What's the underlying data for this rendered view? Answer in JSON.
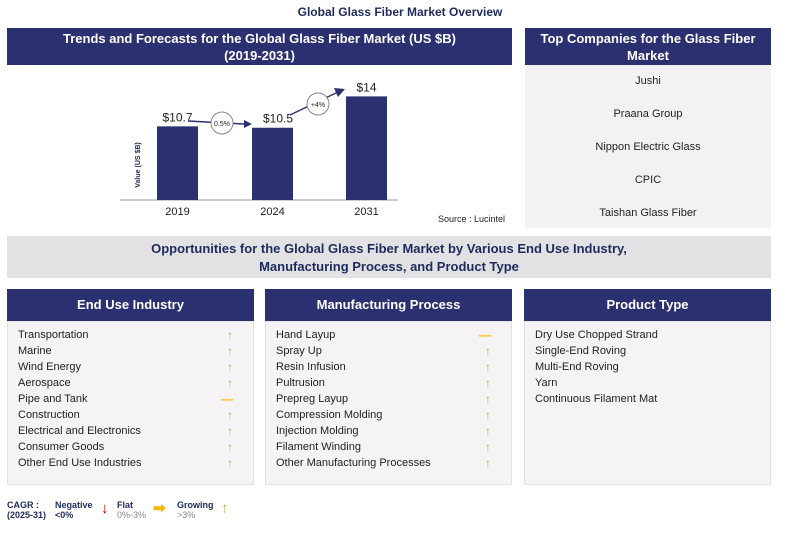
{
  "title": "Global Glass Fiber Market Overview",
  "chart_data": {
    "type": "bar",
    "title": "Trends and Forecasts for the Global Glass Fiber Market (US $B) (2019-2031)",
    "ylabel": "Value (US $B)",
    "categories": [
      "2019",
      "2024",
      "2031"
    ],
    "values": [
      10.7,
      10.5,
      14
    ],
    "data_labels": [
      "$10.7",
      "$10.5",
      "$14"
    ],
    "cagr_labels": [
      "0.5%",
      "+4%"
    ],
    "source": "Source : Lucintel",
    "color": "#2b3170"
  },
  "chart_title_line1": "Trends and Forecasts for the Global Glass Fiber Market (US $B)",
  "chart_title_line2": "(2019-2031)",
  "companies": {
    "title": "Top Companies for the Glass Fiber Market",
    "items": [
      "Jushi",
      "Praana Group",
      "Nippon Electric Glass",
      "CPIC",
      "Taishan Glass Fiber"
    ]
  },
  "opportunities": {
    "line1": "Opportunities for the Global Glass Fiber Market by Various End Use Industry,",
    "line2": "Manufacturing Process, and Product Type"
  },
  "columns": [
    {
      "title": "End Use Industry",
      "items": [
        {
          "label": "Transportation",
          "trend": "up"
        },
        {
          "label": "Marine",
          "trend": "up"
        },
        {
          "label": "Wind Energy",
          "trend": "up"
        },
        {
          "label": "Aerospace",
          "trend": "up"
        },
        {
          "label": "Pipe and Tank",
          "trend": "flat"
        },
        {
          "label": "Construction",
          "trend": "up"
        },
        {
          "label": "Electrical and Electronics",
          "trend": "up"
        },
        {
          "label": "Consumer Goods",
          "trend": "up"
        },
        {
          "label": "Other End Use Industries",
          "trend": "up"
        }
      ]
    },
    {
      "title": "Manufacturing Process",
      "items": [
        {
          "label": "Hand Layup",
          "trend": "flat"
        },
        {
          "label": "Spray Up",
          "trend": "up"
        },
        {
          "label": "Resin Infusion",
          "trend": "up"
        },
        {
          "label": "Pultrusion",
          "trend": "up"
        },
        {
          "label": "Prepreg Layup",
          "trend": "up"
        },
        {
          "label": "Compression Molding",
          "trend": "up"
        },
        {
          "label": "Injection Molding",
          "trend": "up"
        },
        {
          "label": "Filament Winding",
          "trend": "up"
        },
        {
          "label": "Other Manufacturing Processes",
          "trend": "up"
        }
      ]
    },
    {
      "title": "Product Type",
      "items": [
        {
          "label": "Dry Use Chopped Strand"
        },
        {
          "label": "Single-End Roving"
        },
        {
          "label": "Multi-End Roving"
        },
        {
          "label": "Yarn"
        },
        {
          "label": "Continuous Filament Mat"
        }
      ]
    }
  ],
  "legend": {
    "cagr": "CAGR :",
    "period": "(2025-31)",
    "negative": "Negative",
    "negative_range": "<0%",
    "flat": "Flat",
    "flat_range": "0%-3%",
    "growing": "Growing",
    "growing_range": ">3%",
    "colors": {
      "up": "#8cc63f",
      "flat": "#f5b800",
      "down": "#c00000"
    }
  }
}
